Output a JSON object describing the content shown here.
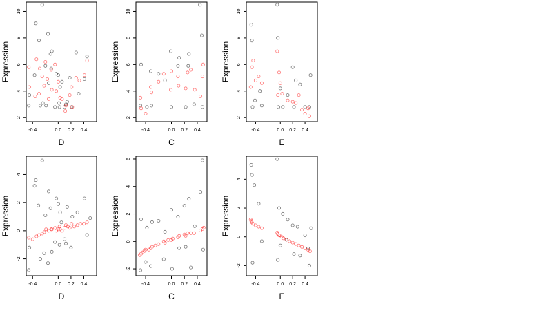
{
  "chart_data": [
    {
      "type": "scatter",
      "xlabel": "D",
      "ylabel": "Expression",
      "xlim": [
        -0.5,
        0.6
      ],
      "ylim": [
        1.7,
        10.7
      ],
      "xticks": [
        -0.4,
        0.0,
        0.2,
        0.4
      ],
      "xticklabels": [
        "-0.4",
        "0.0",
        "0.2",
        "0.4"
      ],
      "yticks": [
        2,
        4,
        6,
        8,
        10
      ],
      "yticklabels": [
        "2",
        "4",
        "6",
        "8",
        "10"
      ],
      "series": [
        {
          "color": "#000000",
          "x": [
            -0.46,
            -0.45,
            -0.37,
            -0.35,
            -0.3,
            -0.28,
            -0.25,
            -0.24,
            -0.2,
            -0.19,
            -0.16,
            -0.15,
            -0.12,
            -0.11,
            -0.1,
            -0.05,
            -0.03,
            0.0,
            0.01,
            0.02,
            0.03,
            0.06,
            0.1,
            0.12,
            0.14,
            0.18,
            0.21,
            0.28,
            0.32,
            0.41,
            0.45
          ],
          "y": [
            2.9,
            3.7,
            5.2,
            9.1,
            7.8,
            2.9,
            10.5,
            3.1,
            5.9,
            2.9,
            8.3,
            4.6,
            6.8,
            5.7,
            7.0,
            2.8,
            5.3,
            5.2,
            3.1,
            2.8,
            4.3,
            4.7,
            2.8,
            3.0,
            3.2,
            5.0,
            2.8,
            6.9,
            3.8,
            4.9,
            6.6
          ]
        },
        {
          "color": "#ff0000",
          "x": [
            -0.46,
            -0.45,
            -0.36,
            -0.34,
            -0.3,
            -0.29,
            -0.25,
            -0.22,
            -0.2,
            -0.17,
            -0.15,
            -0.11,
            -0.1,
            -0.05,
            -0.03,
            0.0,
            0.03,
            0.06,
            0.11,
            0.12,
            0.18,
            0.21,
            0.22,
            0.28,
            0.33,
            0.41,
            0.45
          ],
          "y": [
            5.8,
            4.3,
            3.6,
            6.4,
            3.8,
            5.7,
            5.1,
            4.4,
            6.2,
            4.9,
            3.4,
            5.6,
            4.1,
            6.0,
            4.0,
            4.7,
            3.5,
            3.4,
            2.5,
            2.9,
            3.7,
            4.3,
            2.8,
            5.0,
            4.8,
            5.2,
            6.3
          ]
        }
      ]
    },
    {
      "type": "scatter",
      "xlabel": "C",
      "ylabel": "Expression",
      "xlim": [
        -0.55,
        0.55
      ],
      "ylim": [
        1.7,
        10.7
      ],
      "xticks": [
        -0.4,
        0.0,
        0.2,
        0.4
      ],
      "xticklabels": [
        "-0.4",
        "0.0",
        "0.2",
        "0.4"
      ],
      "yticks": [
        2,
        4,
        6,
        8,
        10
      ],
      "yticklabels": [
        "2",
        "4",
        "6",
        "8",
        "10"
      ],
      "series": [
        {
          "color": "#000000",
          "x": [
            -0.48,
            -0.47,
            -0.38,
            -0.32,
            -0.31,
            -0.2,
            -0.1,
            -0.01,
            0.0,
            0.1,
            0.12,
            0.22,
            0.26,
            0.27,
            0.35,
            0.44,
            0.47,
            0.48
          ],
          "y": [
            2.9,
            6.0,
            2.8,
            5.5,
            2.9,
            5.3,
            4.8,
            7.0,
            2.8,
            5.9,
            6.5,
            2.8,
            5.9,
            6.8,
            3.0,
            10.5,
            8.2,
            2.8
          ]
        },
        {
          "color": "#ff0000",
          "x": [
            -0.48,
            -0.47,
            -0.4,
            -0.32,
            -0.31,
            -0.2,
            -0.12,
            -0.01,
            0.0,
            0.1,
            0.11,
            0.22,
            0.25,
            0.3,
            0.36,
            0.45,
            0.48,
            0.49
          ],
          "y": [
            3.5,
            2.7,
            2.3,
            4.3,
            3.9,
            4.7,
            5.3,
            4.1,
            5.5,
            5.1,
            4.4,
            4.2,
            5.4,
            5.6,
            4.1,
            3.6,
            5.1,
            6.0
          ]
        }
      ]
    },
    {
      "type": "scatter",
      "xlabel": "E",
      "ylabel": "Expression",
      "xlim": [
        -0.55,
        0.6
      ],
      "ylim": [
        1.7,
        10.7
      ],
      "xticks": [
        -0.4,
        0.0,
        0.2,
        0.4
      ],
      "xticklabels": [
        "-0.4",
        "0.0",
        "0.2",
        "0.4"
      ],
      "yticks": [
        2,
        4,
        6,
        8,
        10
      ],
      "yticklabels": [
        "2",
        "4",
        "6",
        "8",
        "10"
      ],
      "series": [
        {
          "color": "#000000",
          "x": [
            -0.47,
            -0.46,
            -0.45,
            -0.41,
            -0.33,
            -0.3,
            -0.05,
            -0.04,
            -0.03,
            0.0,
            0.04,
            0.12,
            0.2,
            0.22,
            0.25,
            0.32,
            0.4,
            0.47,
            0.49
          ],
          "y": [
            9.0,
            7.8,
            2.8,
            3.3,
            4.0,
            2.9,
            10.5,
            8.0,
            2.8,
            4.2,
            2.8,
            3.7,
            5.8,
            2.8,
            4.8,
            4.5,
            2.8,
            2.8,
            5.2
          ]
        },
        {
          "color": "#ff0000",
          "x": [
            -0.48,
            -0.46,
            -0.44,
            -0.4,
            -0.35,
            -0.3,
            -0.05,
            -0.04,
            -0.02,
            0.0,
            0.03,
            0.12,
            0.2,
            0.25,
            0.3,
            0.35,
            0.4,
            0.45,
            0.47
          ],
          "y": [
            4.3,
            5.8,
            6.3,
            4.8,
            5.1,
            4.6,
            7.0,
            3.7,
            5.4,
            4.6,
            3.8,
            3.3,
            3.2,
            3.1,
            3.7,
            2.6,
            2.3,
            2.7,
            2.1
          ]
        }
      ]
    },
    {
      "type": "scatter",
      "xlabel": "D",
      "ylabel": "Expression",
      "xlim": [
        -0.5,
        0.6
      ],
      "ylim": [
        -3.2,
        5.3
      ],
      "xticks": [
        -0.4,
        0.0,
        0.2,
        0.4
      ],
      "xticklabels": [
        "-0.4",
        "0.0",
        "0.2",
        "0.4"
      ],
      "yticks": [
        -2,
        0,
        2,
        4
      ],
      "yticklabels": [
        "-2",
        "0",
        "2",
        "4"
      ],
      "series": [
        {
          "color": "#000000",
          "x": [
            -0.46,
            -0.45,
            -0.37,
            -0.35,
            -0.31,
            -0.28,
            -0.25,
            -0.22,
            -0.2,
            -0.16,
            -0.15,
            -0.12,
            -0.1,
            -0.05,
            -0.03,
            0.0,
            0.02,
            0.03,
            0.05,
            0.1,
            0.12,
            0.14,
            0.2,
            0.22,
            0.3,
            0.41,
            0.45,
            0.5
          ],
          "y": [
            -2.8,
            -1.2,
            3.2,
            3.6,
            1.8,
            -2.0,
            5.0,
            -1.6,
            1.1,
            -2.3,
            2.8,
            1.6,
            -1.5,
            -0.8,
            2.3,
            1.9,
            -1.0,
            1.3,
            0.6,
            -0.6,
            -0.9,
            1.7,
            -1.2,
            1.0,
            1.3,
            2.3,
            -0.3,
            0.9
          ]
        },
        {
          "color": "#ff0000",
          "x": [
            -0.46,
            -0.4,
            -0.34,
            -0.3,
            -0.25,
            -0.22,
            -0.19,
            -0.15,
            -0.11,
            -0.1,
            -0.05,
            -0.03,
            0.0,
            0.02,
            0.03,
            0.06,
            0.1,
            0.12,
            0.15,
            0.18,
            0.21,
            0.25,
            0.3,
            0.35,
            0.4,
            0.45
          ],
          "y": [
            -0.5,
            -0.6,
            -0.4,
            -0.3,
            -0.2,
            -0.1,
            0.1,
            0.0,
            0.1,
            0.1,
            0.2,
            0.0,
            0.1,
            0.3,
            0.1,
            0.0,
            0.2,
            0.4,
            0.3,
            0.2,
            0.5,
            0.3,
            0.4,
            0.5,
            0.5,
            0.6
          ]
        }
      ]
    },
    {
      "type": "scatter",
      "xlabel": "C",
      "ylabel": "Expression",
      "xlim": [
        -0.55,
        0.55
      ],
      "ylim": [
        -2.5,
        6.2
      ],
      "xticks": [
        -0.4,
        0.0,
        0.2,
        0.4
      ],
      "xticklabels": [
        "-0.4",
        "0.0",
        "0.2",
        "0.4"
      ],
      "yticks": [
        -2,
        0,
        2,
        4,
        6
      ],
      "yticklabels": [
        "-2",
        "0",
        "2",
        "4",
        "6"
      ],
      "series": [
        {
          "color": "#000000",
          "x": [
            -0.48,
            -0.47,
            -0.4,
            -0.38,
            -0.32,
            -0.3,
            -0.2,
            -0.12,
            -0.1,
            0.0,
            0.01,
            0.1,
            0.12,
            0.2,
            0.22,
            0.27,
            0.3,
            0.36,
            0.45,
            0.48,
            0.49
          ],
          "y": [
            -2.1,
            1.6,
            -1.5,
            1.0,
            -1.8,
            1.4,
            1.5,
            -1.3,
            0.7,
            2.3,
            -2.0,
            1.8,
            -0.5,
            2.6,
            -0.4,
            3.1,
            -1.9,
            1.1,
            3.6,
            5.9,
            -0.6
          ]
        },
        {
          "color": "#ff0000",
          "x": [
            -0.49,
            -0.47,
            -0.45,
            -0.42,
            -0.4,
            -0.35,
            -0.32,
            -0.3,
            -0.25,
            -0.2,
            -0.12,
            -0.1,
            -0.05,
            0.0,
            0.02,
            0.1,
            0.12,
            0.2,
            0.22,
            0.25,
            0.3,
            0.35,
            0.45,
            0.48,
            0.5
          ],
          "y": [
            -1.0,
            -0.9,
            -0.8,
            -0.7,
            -0.6,
            -0.6,
            -0.5,
            -0.4,
            -0.3,
            -0.2,
            0.0,
            -0.1,
            0.1,
            0.1,
            0.2,
            0.3,
            0.4,
            0.5,
            0.4,
            0.6,
            0.6,
            0.6,
            0.8,
            0.9,
            1.0
          ]
        }
      ]
    },
    {
      "type": "scatter",
      "xlabel": "E",
      "ylabel": "Expression",
      "xlim": [
        -0.55,
        0.6
      ],
      "ylim": [
        -2.7,
        5.6
      ],
      "xticks": [
        -0.4,
        0.0,
        0.2,
        0.4
      ],
      "xticklabels": [
        "-0.4",
        "0.0",
        "0.2",
        "0.4"
      ],
      "yticks": [
        -2,
        0,
        2,
        4
      ],
      "yticklabels": [
        "-2",
        "0",
        "2",
        "4"
      ],
      "series": [
        {
          "color": "#000000",
          "x": [
            -0.47,
            -0.46,
            -0.45,
            -0.42,
            -0.35,
            -0.3,
            -0.05,
            -0.04,
            -0.02,
            0.0,
            0.04,
            0.1,
            0.12,
            0.2,
            0.22,
            0.28,
            0.32,
            0.4,
            0.45,
            0.47,
            0.5
          ],
          "y": [
            5.0,
            4.3,
            -1.8,
            3.6,
            2.3,
            -0.3,
            5.4,
            -1.6,
            2.0,
            -0.6,
            1.6,
            -0.2,
            1.2,
            0.8,
            -1.2,
            0.7,
            -1.3,
            0.1,
            -0.8,
            -2.0,
            0.6
          ]
        },
        {
          "color": "#ff0000",
          "x": [
            -0.48,
            -0.47,
            -0.46,
            -0.44,
            -0.4,
            -0.35,
            -0.3,
            -0.05,
            -0.04,
            -0.02,
            0.0,
            0.02,
            0.05,
            0.1,
            0.15,
            0.2,
            0.25,
            0.3,
            0.35,
            0.4,
            0.45,
            0.48
          ],
          "y": [
            1.2,
            1.1,
            1.0,
            0.9,
            0.8,
            0.7,
            0.6,
            0.3,
            0.2,
            0.1,
            0.1,
            0.0,
            -0.1,
            -0.2,
            -0.3,
            -0.4,
            -0.5,
            -0.6,
            -0.7,
            -0.8,
            -0.9,
            -1.0
          ]
        }
      ]
    }
  ]
}
